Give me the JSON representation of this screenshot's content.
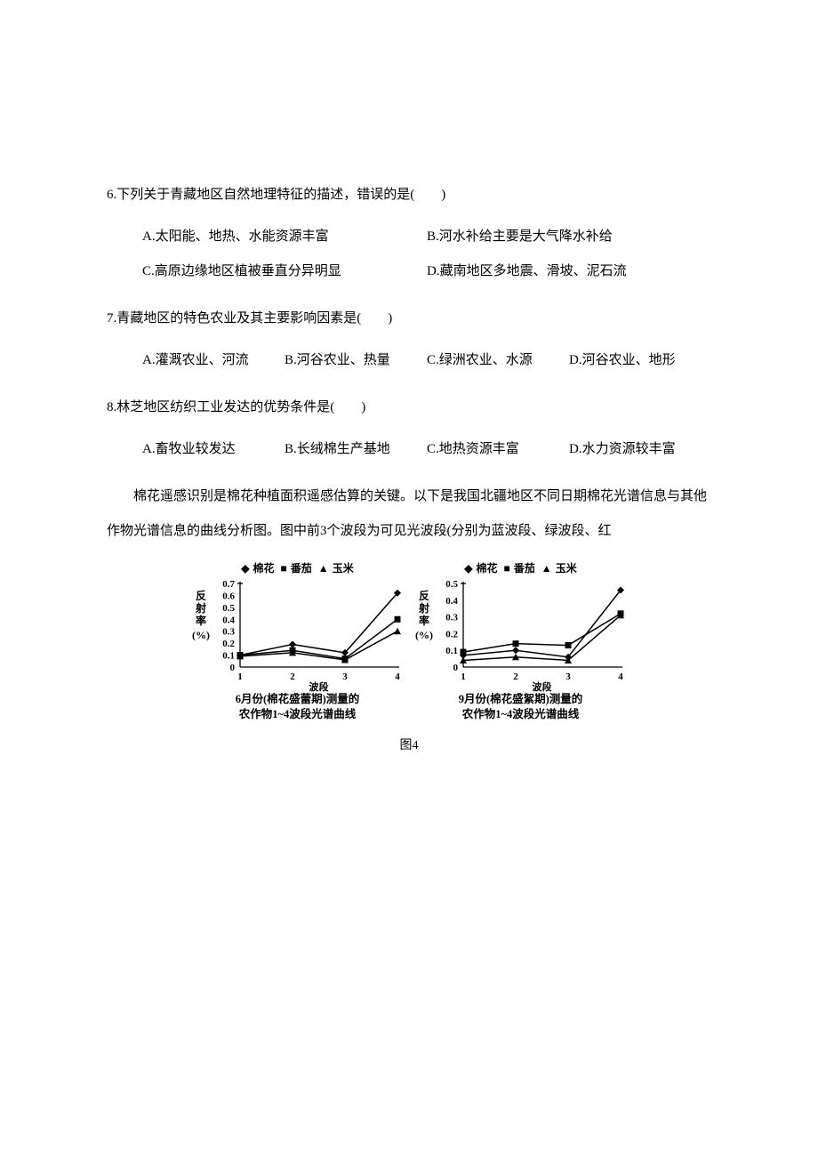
{
  "q6": {
    "stem": "6.下列关于青藏地区自然地理特征的描述，错误的是(　　)",
    "A": "A.太阳能、地热、水能资源丰富",
    "B": "B.河水补给主要是大气降水补给",
    "C": "C.高原边缘地区植被垂直分异明显",
    "D": "D.藏南地区多地震、滑坡、泥石流"
  },
  "q7": {
    "stem": "7.青藏地区的特色农业及其主要影响因素是(　　)",
    "A": "A.灌溉农业、河流",
    "B": "B.河谷农业、热量",
    "C": "C.绿洲农业、水源",
    "D": "D.河谷农业、地形"
  },
  "q8": {
    "stem": "8.林芝地区纺织工业发达的优势条件是(　　)",
    "A": "A.畜牧业较发达",
    "B": "B.长绒棉生产基地",
    "C": "C.地热资源丰富",
    "D": "D.水力资源较丰富"
  },
  "intro": "棉花遥感识别是棉花种植面积遥感估算的关键。以下是我国北疆地区不同日期棉花光谱信息与其他作物光谱信息的曲线分析图。图中前3个波段为可见光波段(分别为蓝波段、绿波段、红",
  "legend": {
    "s1": "棉花",
    "s2": "番茄",
    "s3": "玉米"
  },
  "chart_left": {
    "ylim": [
      0,
      0.7
    ],
    "ytick_step_label": 0.1,
    "yticks": [
      "0",
      "0.1",
      "0.2",
      "0.3",
      "0.4",
      "0.5",
      "0.6",
      "0.7"
    ],
    "xticks": [
      "1",
      "2",
      "3",
      "4"
    ],
    "xlabel": "波段",
    "ylabel_top": "反射率",
    "ylabel_bot": "(%)",
    "caption_l1": "6月份(棉花盛蕾期)测量的",
    "caption_l2": "农作物1~4波段光谱曲线",
    "series": {
      "cotton": [
        0.1,
        0.19,
        0.12,
        0.62
      ],
      "tomato": [
        0.1,
        0.14,
        0.07,
        0.4
      ],
      "corn": [
        0.09,
        0.12,
        0.06,
        0.3
      ]
    }
  },
  "chart_right": {
    "ylim": [
      0,
      0.5
    ],
    "ytick_step_label": 0.1,
    "yticks": [
      "0",
      "0.1",
      "0.2",
      "0.3",
      "0.4",
      "0.5"
    ],
    "xticks": [
      "1",
      "2",
      "3",
      "4"
    ],
    "xlabel": "波段",
    "ylabel_top": "反射率",
    "ylabel_bot": "(%)",
    "caption_l1": "9月份(棉花盛絮期)测量的",
    "caption_l2": "农作物1~4波段光谱曲线",
    "series": {
      "cotton": [
        0.07,
        0.1,
        0.06,
        0.46
      ],
      "tomato": [
        0.09,
        0.14,
        0.13,
        0.32
      ],
      "corn": [
        0.04,
        0.06,
        0.04,
        0.31
      ]
    }
  },
  "fig_number": "图4",
  "colors": {
    "text": "#000000",
    "background": "#ffffff",
    "line": "#000000"
  },
  "markers": {
    "cotton": "diamond",
    "tomato": "square",
    "corn": "triangle"
  }
}
